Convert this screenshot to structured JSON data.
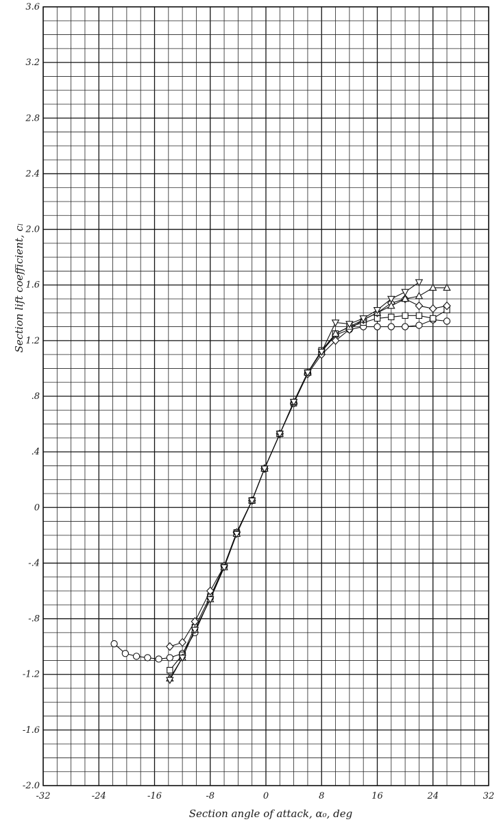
{
  "chart_data": {
    "type": "scatter",
    "title": "",
    "xlabel": "Section angle of attack, α₀, deg",
    "ylabel": "Section lift coefficient, cₗ",
    "xlim": [
      -32,
      32
    ],
    "ylim": [
      -2.0,
      3.6
    ],
    "x_ticks": [
      -32,
      -24,
      -16,
      -8,
      0,
      8,
      16,
      24,
      32
    ],
    "x_tick_labels": [
      "-32",
      "-24",
      "-16",
      "-8",
      "0",
      "8",
      "16",
      "24",
      "32"
    ],
    "y_ticks": [
      -2.0,
      -1.6,
      -1.2,
      -0.8,
      -0.4,
      0,
      0.4,
      0.8,
      1.2,
      1.6,
      2.0,
      2.4,
      2.8,
      3.2,
      3.6
    ],
    "y_tick_labels": [
      "-2.0",
      "-1.6",
      "-1.2",
      "-.8",
      "-.4",
      "0",
      ".4",
      ".8",
      "1.2",
      "1.6",
      "2.0",
      "2.4",
      "2.8",
      "3.2",
      "3.6"
    ],
    "grid": true,
    "legend": "none",
    "series": [
      {
        "marker": "circle",
        "x": [
          -21.8,
          -20.2,
          -18.6,
          -17.0,
          -15.4,
          -13.8,
          -12.0,
          -10.2,
          -8.0,
          -6.0,
          -4.2,
          -2.0,
          -0.2,
          2.0,
          4.0,
          6.0,
          8.0,
          10.0,
          12.0,
          14.0,
          16.0,
          18.0,
          20.0,
          22.0,
          24.0,
          26.0
        ],
        "y": [
          -0.98,
          -1.05,
          -1.07,
          -1.08,
          -1.09,
          -1.08,
          -1.05,
          -0.9,
          -0.65,
          -0.42,
          -0.18,
          0.05,
          0.28,
          0.53,
          0.75,
          0.97,
          1.12,
          1.24,
          1.28,
          1.3,
          1.3,
          1.3,
          1.3,
          1.31,
          1.35,
          1.34
        ]
      },
      {
        "marker": "square",
        "x": [
          -13.8,
          -12.0,
          -10.2,
          -8.0,
          -6.0,
          -4.2,
          -2.0,
          -0.2,
          2.0,
          4.0,
          6.0,
          8.0,
          10.0,
          12.0,
          14.0,
          16.0,
          18.0,
          20.0,
          22.0,
          24.0,
          26.0
        ],
        "y": [
          -1.17,
          -1.06,
          -0.86,
          -0.64,
          -0.42,
          -0.18,
          0.05,
          0.28,
          0.53,
          0.75,
          0.97,
          1.13,
          1.25,
          1.3,
          1.33,
          1.36,
          1.37,
          1.38,
          1.38,
          1.36,
          1.42
        ]
      },
      {
        "marker": "diamond",
        "x": [
          -13.8,
          -12.0,
          -10.2,
          -8.0,
          -6.0,
          -4.2,
          -2.0,
          -0.2,
          2.0,
          4.0,
          6.0,
          8.0,
          10.0,
          12.0,
          14.0,
          16.0,
          18.0,
          20.0,
          22.0,
          24.0,
          26.0
        ],
        "y": [
          -1.0,
          -0.97,
          -0.82,
          -0.6,
          -0.42,
          -0.18,
          0.05,
          0.28,
          0.53,
          0.75,
          0.96,
          1.1,
          1.2,
          1.28,
          1.35,
          1.4,
          1.47,
          1.5,
          1.45,
          1.43,
          1.45
        ]
      },
      {
        "marker": "triangle-up",
        "x": [
          -13.8,
          -12.0,
          -10.2,
          -8.0,
          -6.0,
          -4.2,
          -2.0,
          -0.2,
          2.0,
          4.0,
          6.0,
          8.0,
          10.0,
          12.0,
          14.0,
          16.0,
          18.0,
          20.0,
          22.0,
          24.0,
          26.0
        ],
        "y": [
          -1.23,
          -1.08,
          -0.88,
          -0.66,
          -0.43,
          -0.19,
          0.05,
          0.28,
          0.53,
          0.76,
          0.97,
          1.12,
          1.25,
          1.3,
          1.35,
          1.4,
          1.45,
          1.5,
          1.52,
          1.58,
          1.58
        ]
      },
      {
        "marker": "triangle-down",
        "x": [
          -13.8,
          -12.0,
          -10.2,
          -8.0,
          -6.0,
          -4.2,
          -2.0,
          -0.2,
          2.0,
          4.0,
          6.0,
          8.0,
          10.0,
          12.0,
          14.0,
          16.0,
          18.0,
          20.0,
          22.0
        ],
        "y": [
          -1.24,
          -1.08,
          -0.88,
          -0.66,
          -0.43,
          -0.19,
          0.05,
          0.28,
          0.53,
          0.76,
          0.97,
          1.12,
          1.33,
          1.32,
          1.36,
          1.42,
          1.5,
          1.55,
          1.62
        ]
      }
    ]
  }
}
